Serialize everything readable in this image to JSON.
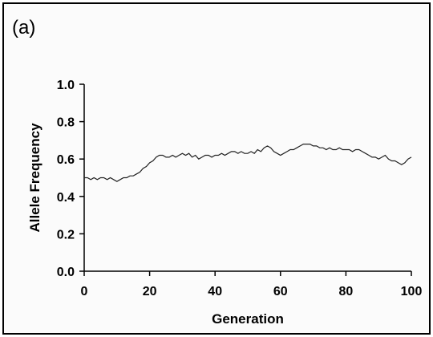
{
  "panel_label": "(a)",
  "chart_data": {
    "type": "line",
    "xlabel": "Generation",
    "ylabel": "Allele Frequency",
    "xlim": [
      0,
      100
    ],
    "ylim": [
      0.0,
      1.0
    ],
    "xticks": [
      "0",
      "20",
      "40",
      "60",
      "80",
      "100"
    ],
    "yticks": [
      "0.0",
      "0.2",
      "0.4",
      "0.6",
      "0.8",
      "1.0"
    ],
    "grid": false,
    "series": [
      {
        "color": "#222222",
        "x": [
          0,
          1,
          2,
          3,
          4,
          5,
          6,
          7,
          8,
          9,
          10,
          11,
          12,
          13,
          14,
          15,
          16,
          17,
          18,
          19,
          20,
          21,
          22,
          23,
          24,
          25,
          26,
          27,
          28,
          29,
          30,
          31,
          32,
          33,
          34,
          35,
          36,
          37,
          38,
          39,
          40,
          41,
          42,
          43,
          44,
          45,
          46,
          47,
          48,
          49,
          50,
          51,
          52,
          53,
          54,
          55,
          56,
          57,
          58,
          59,
          60,
          61,
          62,
          63,
          64,
          65,
          66,
          67,
          68,
          69,
          70,
          71,
          72,
          73,
          74,
          75,
          76,
          77,
          78,
          79,
          80,
          81,
          82,
          83,
          84,
          85,
          86,
          87,
          88,
          89,
          90,
          91,
          92,
          93,
          94,
          95,
          96,
          97,
          98,
          99,
          100
        ],
        "values": [
          0.5,
          0.5,
          0.49,
          0.5,
          0.49,
          0.5,
          0.5,
          0.49,
          0.5,
          0.49,
          0.48,
          0.49,
          0.5,
          0.5,
          0.51,
          0.51,
          0.52,
          0.53,
          0.55,
          0.56,
          0.58,
          0.59,
          0.61,
          0.62,
          0.62,
          0.61,
          0.61,
          0.62,
          0.61,
          0.62,
          0.63,
          0.62,
          0.63,
          0.61,
          0.62,
          0.6,
          0.61,
          0.62,
          0.62,
          0.61,
          0.62,
          0.62,
          0.63,
          0.62,
          0.63,
          0.64,
          0.64,
          0.63,
          0.64,
          0.63,
          0.63,
          0.64,
          0.63,
          0.65,
          0.64,
          0.66,
          0.67,
          0.66,
          0.64,
          0.63,
          0.62,
          0.63,
          0.64,
          0.65,
          0.65,
          0.66,
          0.67,
          0.68,
          0.68,
          0.68,
          0.67,
          0.67,
          0.66,
          0.66,
          0.65,
          0.66,
          0.65,
          0.65,
          0.66,
          0.65,
          0.65,
          0.65,
          0.64,
          0.65,
          0.65,
          0.64,
          0.63,
          0.62,
          0.61,
          0.61,
          0.6,
          0.61,
          0.62,
          0.6,
          0.59,
          0.59,
          0.58,
          0.57,
          0.58,
          0.6,
          0.61
        ]
      }
    ]
  }
}
